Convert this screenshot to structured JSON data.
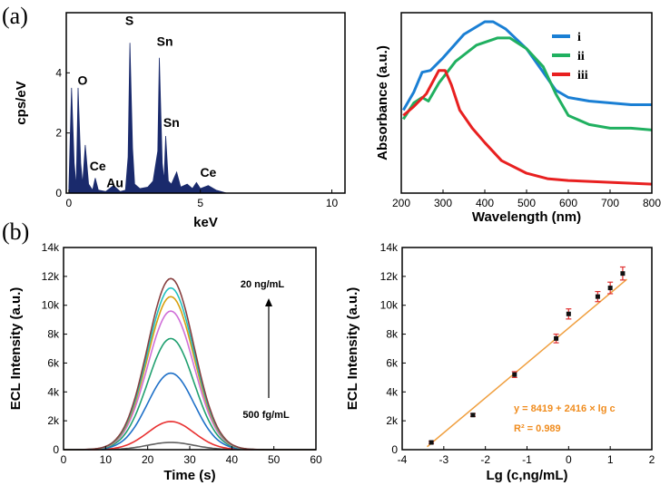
{
  "panel_labels": [
    "(a)",
    "(b)"
  ],
  "colors": {
    "eds_fill": "#1a2a6c",
    "uv_i": "#1a7fd4",
    "uv_ii": "#20b060",
    "uv_iii": "#e82020",
    "fit_line": "#f0a040",
    "fit_text": "#f08c1e",
    "ecl_curves": [
      "#606060",
      "#e83030",
      "#1e70c8",
      "#20a070",
      "#d070d8",
      "#d8a010",
      "#20c0c0",
      "#884040"
    ]
  },
  "chart_data": [
    {
      "type": "area",
      "title": "",
      "xlabel": "keV",
      "ylabel": "cps/eV",
      "xlim": [
        -0.1,
        10.5
      ],
      "ylim": [
        0,
        6
      ],
      "xticks": [
        0,
        5,
        10
      ],
      "yticks": [
        0,
        2,
        4
      ],
      "spectrum": [
        [
          0.0,
          0.2
        ],
        [
          0.1,
          3.5
        ],
        [
          0.2,
          1.0
        ],
        [
          0.28,
          0.2
        ],
        [
          0.35,
          3.5
        ],
        [
          0.45,
          1.0
        ],
        [
          0.52,
          0.3
        ],
        [
          0.62,
          1.6
        ],
        [
          0.75,
          0.3
        ],
        [
          0.9,
          0.1
        ],
        [
          1.0,
          0.5
        ],
        [
          1.12,
          0.1
        ],
        [
          1.4,
          0.05
        ],
        [
          1.7,
          0.25
        ],
        [
          1.95,
          0.05
        ],
        [
          2.15,
          0.1
        ],
        [
          2.25,
          1.2
        ],
        [
          2.32,
          5.0
        ],
        [
          2.42,
          1.5
        ],
        [
          2.5,
          0.3
        ],
        [
          2.7,
          0.15
        ],
        [
          3.0,
          0.2
        ],
        [
          3.2,
          0.4
        ],
        [
          3.38,
          1.4
        ],
        [
          3.44,
          4.5
        ],
        [
          3.55,
          1.0
        ],
        [
          3.62,
          0.4
        ],
        [
          3.68,
          1.9
        ],
        [
          3.78,
          0.4
        ],
        [
          3.9,
          0.3
        ],
        [
          4.0,
          0.5
        ],
        [
          4.1,
          0.7
        ],
        [
          4.25,
          0.2
        ],
        [
          4.5,
          0.3
        ],
        [
          4.7,
          0.15
        ],
        [
          4.85,
          0.35
        ],
        [
          5.0,
          0.15
        ],
        [
          5.3,
          0.25
        ],
        [
          5.6,
          0.1
        ],
        [
          6.0,
          0.0
        ]
      ],
      "annotations": [
        {
          "text": "O",
          "x": 0.52,
          "y": 3.6
        },
        {
          "text": "S",
          "x": 2.3,
          "y": 5.6
        },
        {
          "text": "Sn",
          "x": 3.65,
          "y": 4.9
        },
        {
          "text": "Sn",
          "x": 3.9,
          "y": 2.2
        },
        {
          "text": "Ce",
          "x": 1.1,
          "y": 0.75
        },
        {
          "text": "Au",
          "x": 1.75,
          "y": 0.2
        },
        {
          "text": "Ce",
          "x": 5.3,
          "y": 0.55
        }
      ]
    },
    {
      "type": "line",
      "title": "",
      "xlabel": "Wavelength (nm)",
      "ylabel": "Absorbance (a.u.)",
      "xlim": [
        200,
        800
      ],
      "ylim": [
        0,
        1
      ],
      "xticks": [
        200,
        300,
        400,
        500,
        600,
        700,
        800
      ],
      "y_tick_labels_shown": false,
      "legend": "top-right",
      "series": [
        {
          "name": "i",
          "color": "#1a7fd4",
          "points": [
            [
              205,
              0.46
            ],
            [
              230,
              0.56
            ],
            [
              250,
              0.67
            ],
            [
              270,
              0.68
            ],
            [
              300,
              0.75
            ],
            [
              350,
              0.88
            ],
            [
              400,
              0.95
            ],
            [
              420,
              0.95
            ],
            [
              450,
              0.91
            ],
            [
              500,
              0.8
            ],
            [
              540,
              0.67
            ],
            [
              570,
              0.57
            ],
            [
              600,
              0.53
            ],
            [
              650,
              0.51
            ],
            [
              700,
              0.5
            ],
            [
              750,
              0.49
            ],
            [
              800,
              0.49
            ]
          ]
        },
        {
          "name": "ii",
          "color": "#20b060",
          "points": [
            [
              205,
              0.41
            ],
            [
              230,
              0.5
            ],
            [
              250,
              0.53
            ],
            [
              265,
              0.51
            ],
            [
              290,
              0.61
            ],
            [
              330,
              0.73
            ],
            [
              380,
              0.82
            ],
            [
              430,
              0.86
            ],
            [
              460,
              0.86
            ],
            [
              500,
              0.8
            ],
            [
              540,
              0.7
            ],
            [
              570,
              0.55
            ],
            [
              600,
              0.43
            ],
            [
              650,
              0.38
            ],
            [
              700,
              0.36
            ],
            [
              750,
              0.36
            ],
            [
              800,
              0.35
            ]
          ]
        },
        {
          "name": "iii",
          "color": "#e82020",
          "points": [
            [
              205,
              0.43
            ],
            [
              230,
              0.48
            ],
            [
              260,
              0.55
            ],
            [
              290,
              0.68
            ],
            [
              305,
              0.68
            ],
            [
              320,
              0.6
            ],
            [
              340,
              0.46
            ],
            [
              370,
              0.36
            ],
            [
              400,
              0.28
            ],
            [
              440,
              0.18
            ],
            [
              500,
              0.11
            ],
            [
              550,
              0.08
            ],
            [
              600,
              0.07
            ],
            [
              700,
              0.06
            ],
            [
              800,
              0.05
            ]
          ]
        }
      ]
    },
    {
      "type": "line",
      "title": "",
      "xlabel": "Time (s)",
      "ylabel": "ECL Intensity (a.u.)",
      "xlim": [
        0,
        60
      ],
      "ylim": [
        0,
        14000
      ],
      "xticks": [
        0,
        10,
        20,
        30,
        40,
        50,
        60
      ],
      "yticks": [
        0,
        2000,
        4000,
        6000,
        8000,
        10000,
        12000,
        14000
      ],
      "ytick_labels": [
        "0",
        "2k",
        "4k",
        "6k",
        "8k",
        "10k",
        "12k",
        "14k"
      ],
      "peak_center_s": 25.5,
      "peak_width_s": 5.5,
      "series_peaks": [
        500,
        1950,
        5300,
        7700,
        9600,
        10600,
        11200,
        11850
      ],
      "annotation_top": "20 ng/mL",
      "annotation_bottom": "500 fg/mL"
    },
    {
      "type": "scatter",
      "title": "",
      "xlabel": "Lg (c,ng/mL)",
      "ylabel": "ECL Intensity (a.u.)",
      "xlim": [
        -4,
        2
      ],
      "ylim": [
        0,
        14000
      ],
      "xticks": [
        -4,
        -3,
        -2,
        -1,
        0,
        1,
        2
      ],
      "yticks": [
        0,
        2000,
        4000,
        6000,
        8000,
        10000,
        12000,
        14000
      ],
      "ytick_labels": [
        "0",
        "2k",
        "4k",
        "6k",
        "8k",
        "10k",
        "12k",
        "14k"
      ],
      "points": [
        {
          "x": -3.3,
          "y": 500,
          "err": 80
        },
        {
          "x": -2.3,
          "y": 2400,
          "err": 100
        },
        {
          "x": -1.3,
          "y": 5200,
          "err": 200
        },
        {
          "x": -0.3,
          "y": 7700,
          "err": 300
        },
        {
          "x": 0.0,
          "y": 9400,
          "err": 350
        },
        {
          "x": 0.7,
          "y": 10600,
          "err": 350
        },
        {
          "x": 1.0,
          "y": 11200,
          "err": 400
        },
        {
          "x": 1.3,
          "y": 12200,
          "err": 450
        }
      ],
      "fit": {
        "intercept": 8419,
        "slope": 2416,
        "x_range": [
          -3.4,
          1.4
        ]
      },
      "equation": "y = 8419 + 2416 × lg c",
      "r_squared": "R² = 0.989"
    }
  ]
}
